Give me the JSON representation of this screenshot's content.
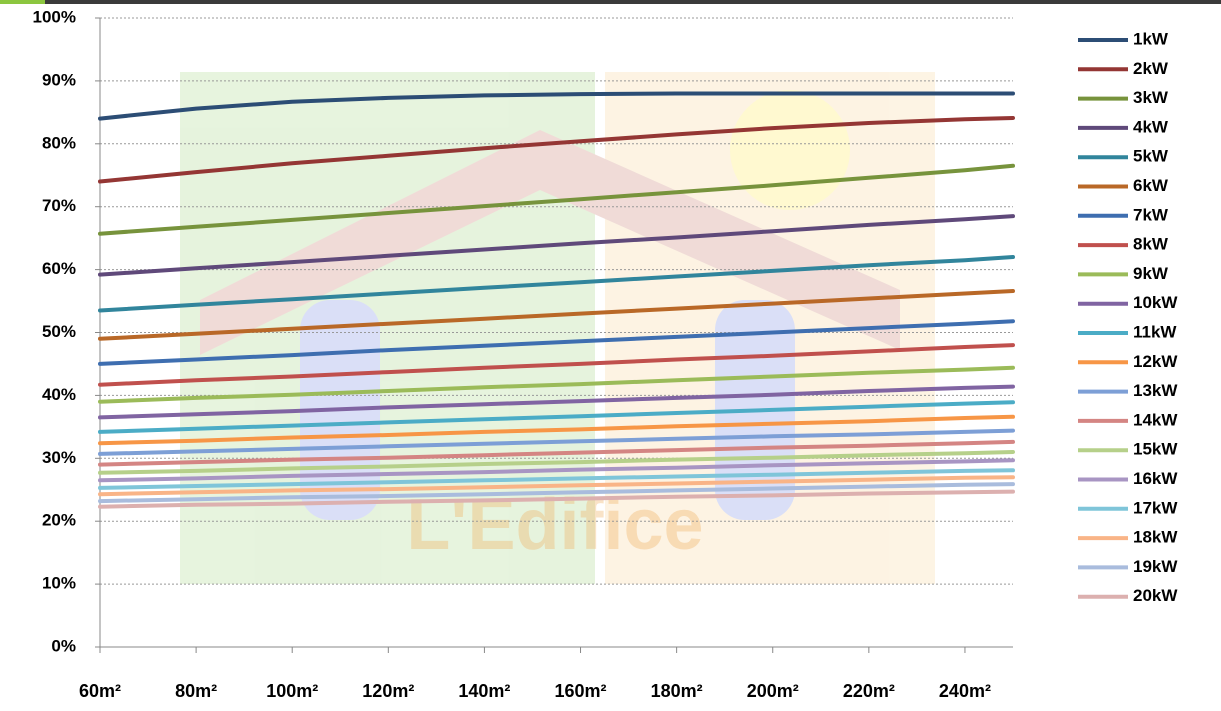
{
  "chart_data": {
    "type": "line",
    "watermark": "L'Edifice",
    "x": [
      60,
      80,
      100,
      120,
      140,
      160,
      180,
      200,
      220,
      240,
      250
    ],
    "xlim": [
      60,
      250
    ],
    "xticks": [
      {
        "value": 60,
        "label": "60m²"
      },
      {
        "value": 80,
        "label": "80m²"
      },
      {
        "value": 100,
        "label": "100m²"
      },
      {
        "value": 120,
        "label": "120m²"
      },
      {
        "value": 140,
        "label": "140m²"
      },
      {
        "value": 160,
        "label": "160m²"
      },
      {
        "value": 180,
        "label": "180m²"
      },
      {
        "value": 200,
        "label": "200m²"
      },
      {
        "value": 220,
        "label": "220m²"
      },
      {
        "value": 240,
        "label": "240m²"
      }
    ],
    "ylim": [
      0,
      100
    ],
    "yticks": [
      {
        "value": 0,
        "label": "0%"
      },
      {
        "value": 10,
        "label": "10%"
      },
      {
        "value": 20,
        "label": "20%"
      },
      {
        "value": 30,
        "label": "30%"
      },
      {
        "value": 40,
        "label": "40%"
      },
      {
        "value": 50,
        "label": "50%"
      },
      {
        "value": 60,
        "label": "60%"
      },
      {
        "value": 70,
        "label": "70%"
      },
      {
        "value": 80,
        "label": "80%"
      },
      {
        "value": 90,
        "label": "90%"
      },
      {
        "value": 100,
        "label": "100%"
      }
    ],
    "grid": true,
    "legend": "right",
    "series": [
      {
        "name": "1kW",
        "color": "#2c4d75",
        "values": [
          84,
          85.6,
          86.7,
          87.3,
          87.7,
          87.9,
          88,
          88,
          88,
          88,
          88
        ]
      },
      {
        "name": "2kW",
        "color": "#943634",
        "values": [
          74,
          75.5,
          76.9,
          78.1,
          79.3,
          80.4,
          81.5,
          82.5,
          83.3,
          83.9,
          84.1
        ]
      },
      {
        "name": "3kW",
        "color": "#77933c",
        "values": [
          65.7,
          66.8,
          67.9,
          69.0,
          70.1,
          71.2,
          72.3,
          73.4,
          74.6,
          75.8,
          76.5
        ]
      },
      {
        "name": "4kW",
        "color": "#5f497a",
        "values": [
          59.2,
          60.2,
          61.2,
          62.2,
          63.2,
          64.2,
          65.1,
          66.1,
          67.1,
          68.0,
          68.5
        ]
      },
      {
        "name": "5kW",
        "color": "#31859c",
        "values": [
          53.5,
          54.4,
          55.3,
          56.2,
          57.1,
          58.0,
          58.9,
          59.8,
          60.7,
          61.5,
          62.0
        ]
      },
      {
        "name": "6kW",
        "color": "#b96827",
        "values": [
          49,
          49.8,
          50.6,
          51.4,
          52.2,
          53.0,
          53.8,
          54.6,
          55.4,
          56.2,
          56.6
        ]
      },
      {
        "name": "7kW",
        "color": "#3e6eb0",
        "values": [
          45,
          45.7,
          46.4,
          47.2,
          47.9,
          48.6,
          49.3,
          50.0,
          50.7,
          51.4,
          51.8
        ]
      },
      {
        "name": "8kW",
        "color": "#c0504d",
        "values": [
          41.7,
          42.4,
          43.0,
          43.7,
          44.4,
          45.0,
          45.7,
          46.3,
          47.0,
          47.7,
          48.0
        ]
      },
      {
        "name": "9kW",
        "color": "#9bbb59",
        "values": [
          39.0,
          39.6,
          40.1,
          40.7,
          41.3,
          41.8,
          42.4,
          43.0,
          43.6,
          44.1,
          44.4
        ]
      },
      {
        "name": "10kW",
        "color": "#8064a2",
        "values": [
          36.5,
          37.0,
          37.5,
          38.1,
          38.6,
          39.1,
          39.6,
          40.1,
          40.7,
          41.2,
          41.4
        ]
      },
      {
        "name": "11kW",
        "color": "#4bacc6",
        "values": [
          34.2,
          34.7,
          35.2,
          35.7,
          36.2,
          36.7,
          37.2,
          37.7,
          38.2,
          38.7,
          38.9
        ]
      },
      {
        "name": "12kW",
        "color": "#f79646",
        "values": [
          32.4,
          32.8,
          33.3,
          33.7,
          34.2,
          34.6,
          35.1,
          35.5,
          35.9,
          36.4,
          36.6
        ]
      },
      {
        "name": "13kW",
        "color": "#7d9fd6",
        "values": [
          30.7,
          31.1,
          31.5,
          31.9,
          32.3,
          32.7,
          33.1,
          33.5,
          33.8,
          34.2,
          34.4
        ]
      },
      {
        "name": "14kW",
        "color": "#d48583",
        "values": [
          29.0,
          29.4,
          29.8,
          30.1,
          30.5,
          30.9,
          31.3,
          31.7,
          32.0,
          32.4,
          32.6
        ]
      },
      {
        "name": "15kW",
        "color": "#b6d08a",
        "values": [
          27.7,
          28.0,
          28.4,
          28.7,
          29.1,
          29.4,
          29.8,
          30.1,
          30.5,
          30.8,
          31.0
        ]
      },
      {
        "name": "16kW",
        "color": "#a895c3",
        "values": [
          26.5,
          26.8,
          27.2,
          27.5,
          27.8,
          28.2,
          28.5,
          28.9,
          29.2,
          29.5,
          29.7
        ]
      },
      {
        "name": "17kW",
        "color": "#7fc5d9",
        "values": [
          25.3,
          25.6,
          25.9,
          26.2,
          26.5,
          26.8,
          27.1,
          27.4,
          27.7,
          28.0,
          28.1
        ]
      },
      {
        "name": "18kW",
        "color": "#f9b487",
        "values": [
          24.3,
          24.6,
          24.9,
          25.1,
          25.4,
          25.7,
          26.0,
          26.3,
          26.6,
          26.9,
          27.0
        ]
      },
      {
        "name": "19kW",
        "color": "#a9bcdd",
        "values": [
          23.2,
          23.5,
          23.8,
          24.0,
          24.3,
          24.6,
          24.9,
          25.2,
          25.5,
          25.8,
          25.9
        ]
      },
      {
        "name": "20kW",
        "color": "#dcb0af",
        "values": [
          22.3,
          22.6,
          22.8,
          23.1,
          23.3,
          23.6,
          23.9,
          24.1,
          24.4,
          24.6,
          24.7
        ]
      }
    ]
  }
}
